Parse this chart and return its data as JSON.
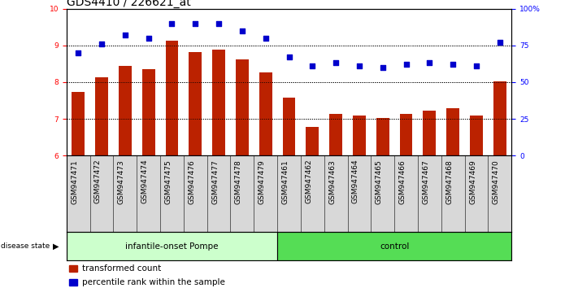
{
  "title": "GDS4410 / 226621_at",
  "samples": [
    "GSM947471",
    "GSM947472",
    "GSM947473",
    "GSM947474",
    "GSM947475",
    "GSM947476",
    "GSM947477",
    "GSM947478",
    "GSM947479",
    "GSM947461",
    "GSM947462",
    "GSM947463",
    "GSM947464",
    "GSM947465",
    "GSM947466",
    "GSM947467",
    "GSM947468",
    "GSM947469",
    "GSM947470"
  ],
  "bar_values": [
    7.73,
    8.13,
    8.45,
    8.35,
    9.12,
    8.82,
    8.88,
    8.62,
    8.27,
    7.58,
    6.78,
    7.13,
    7.08,
    7.02,
    7.13,
    7.22,
    7.28,
    7.08,
    8.02
  ],
  "dot_pct": [
    70,
    76,
    82,
    80,
    90,
    90,
    90,
    85,
    80,
    67,
    61,
    63,
    61,
    60,
    62,
    63,
    62,
    61,
    77
  ],
  "bar_color": "#bb2200",
  "dot_color": "#0000cc",
  "ylim_left": [
    6,
    10
  ],
  "ylim_right": [
    0,
    100
  ],
  "yticks_left": [
    6,
    7,
    8,
    9,
    10
  ],
  "yticks_right": [
    0,
    25,
    50,
    75,
    100
  ],
  "ytick_labels_right": [
    "0",
    "25",
    "50",
    "75",
    "100%"
  ],
  "group1_label": "infantile-onset Pompe",
  "group2_label": "control",
  "group1_count": 9,
  "group2_count": 10,
  "disease_state_label": "disease state",
  "legend_bar_label": "transformed count",
  "legend_dot_label": "percentile rank within the sample",
  "group1_color": "#ccffcc",
  "group2_color": "#55dd55",
  "bar_width": 0.55,
  "title_fontsize": 10,
  "tick_fontsize": 6.5,
  "label_fontsize": 7.5
}
